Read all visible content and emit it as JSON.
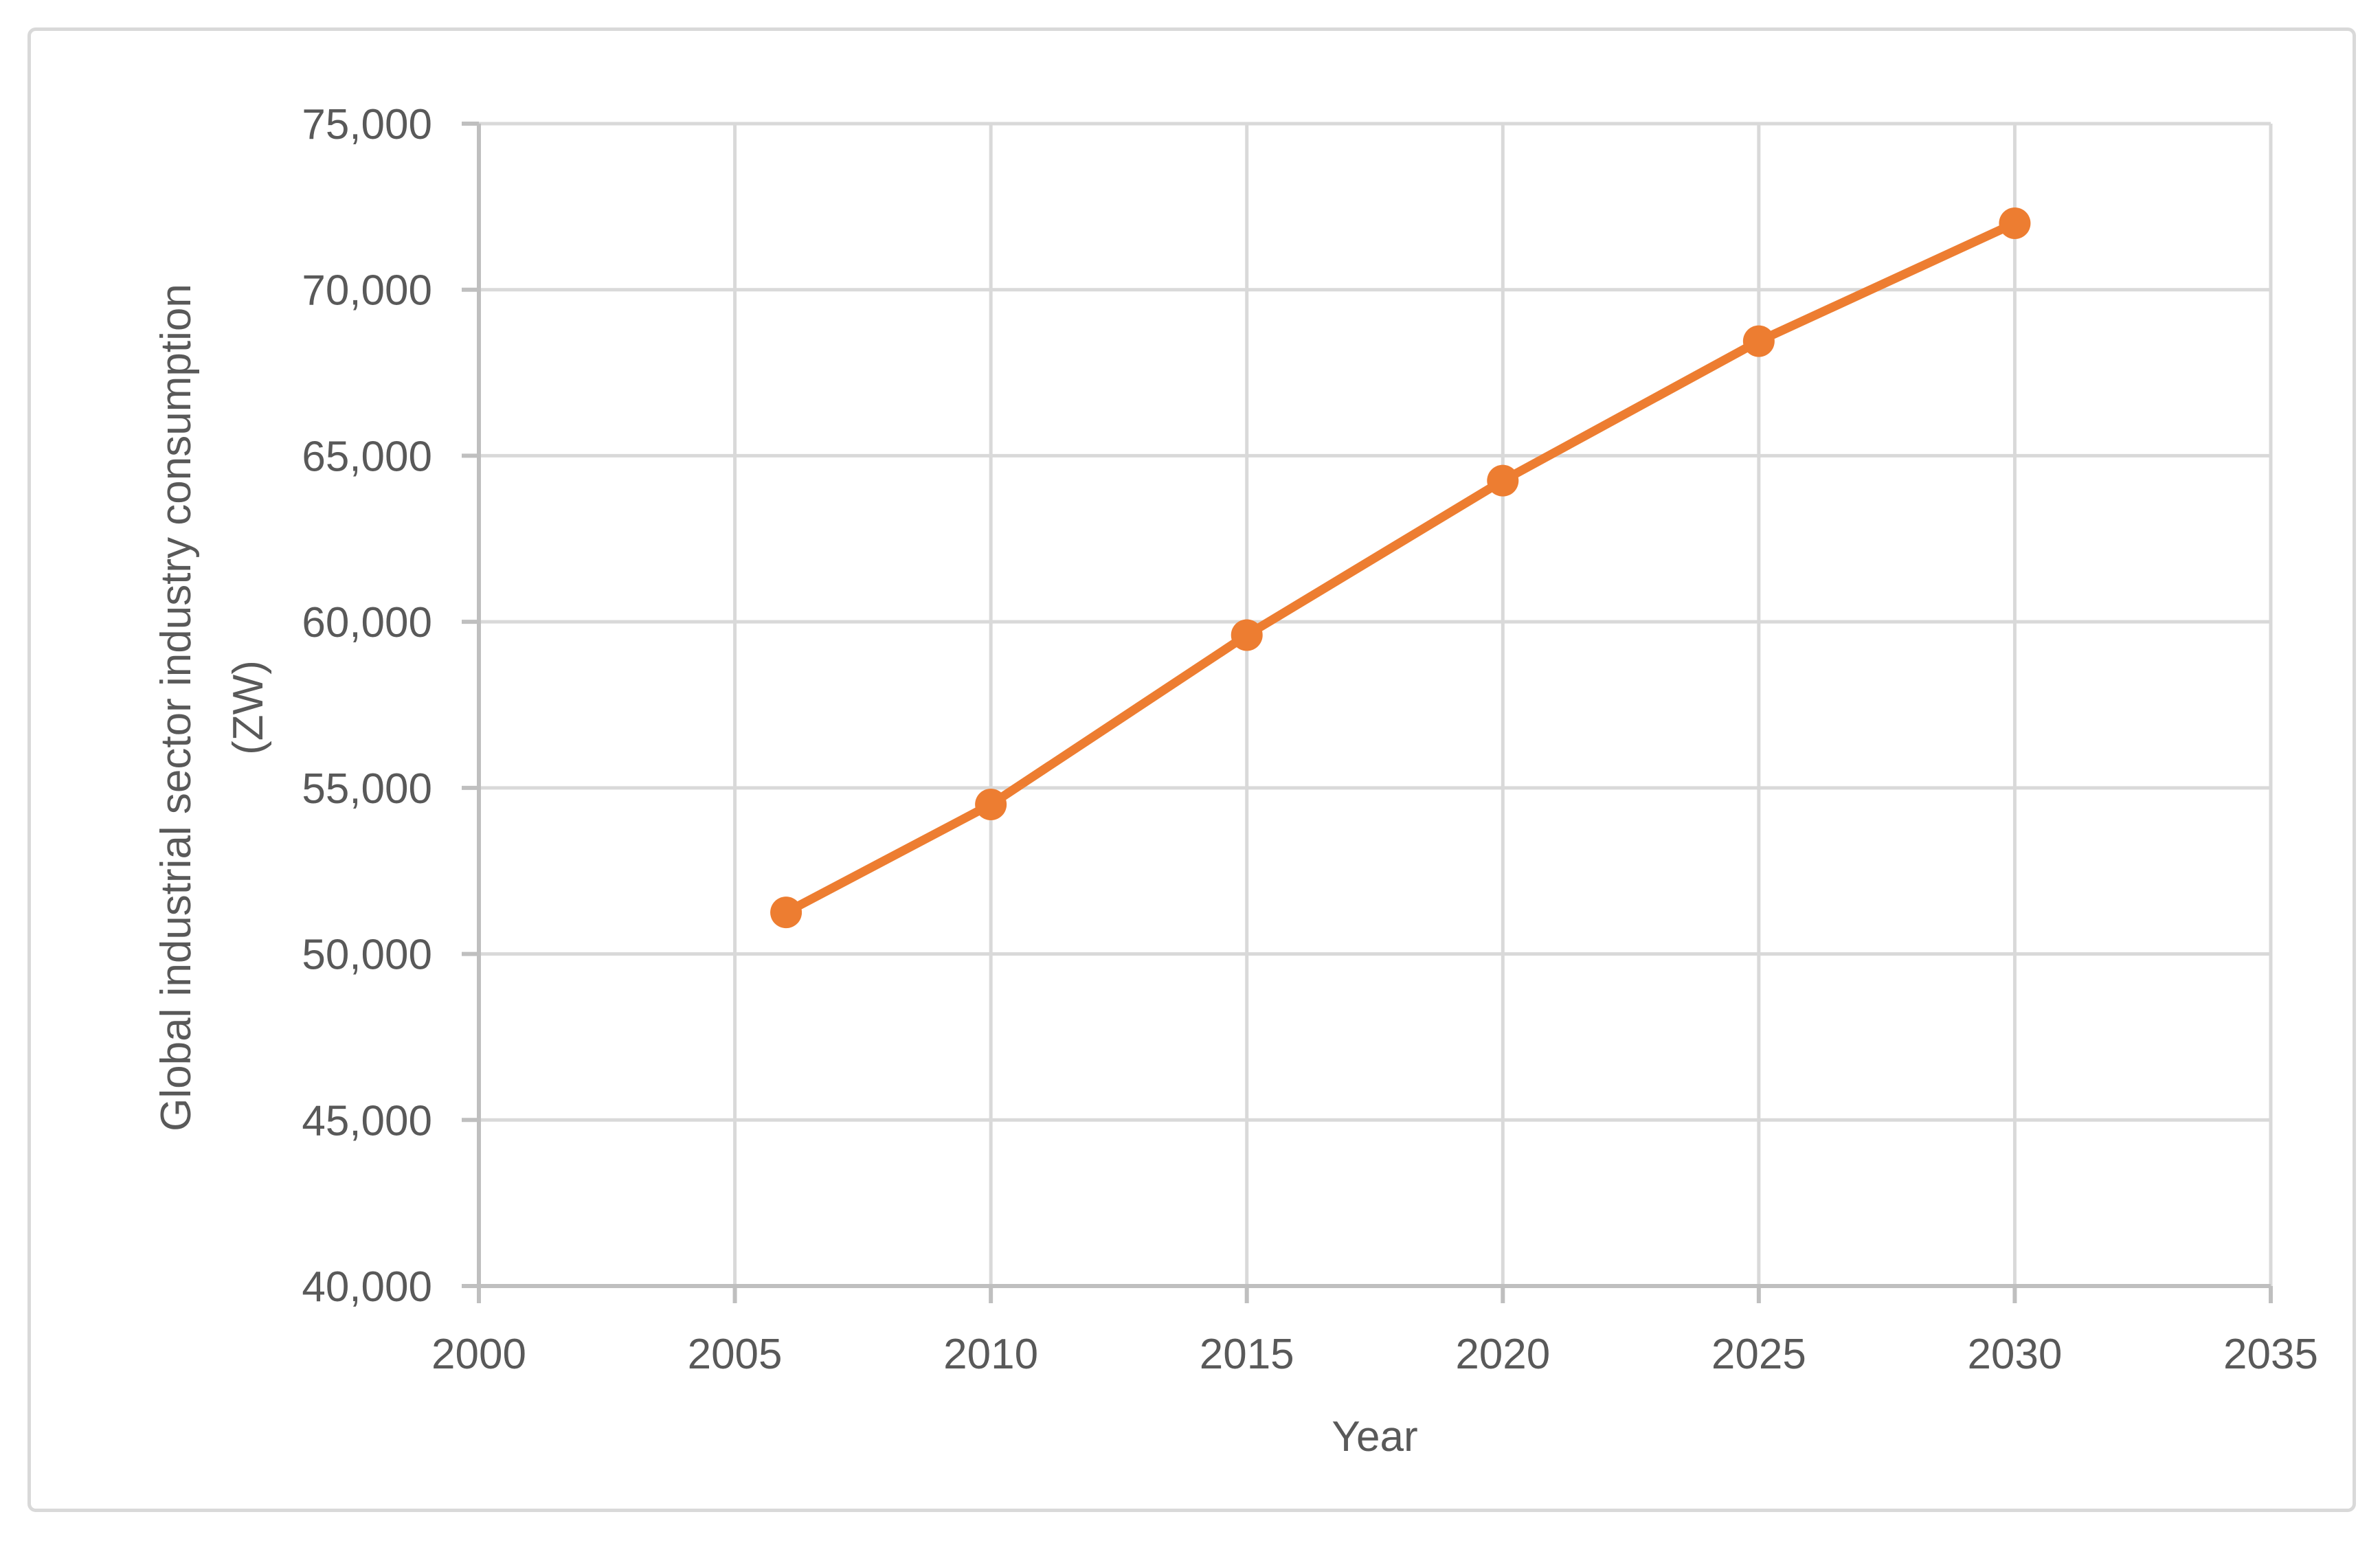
{
  "window": {
    "background": "#ffffff",
    "border_color": "#D9D9D9"
  },
  "chart_data": {
    "type": "line",
    "title": "",
    "xlabel": "Year",
    "ylabel": "Global industrial sector industry consumption (ZW)",
    "ylabel_line1": "Global industrial sector industry consumption",
    "ylabel_line2": "(ZW)",
    "x": [
      2006,
      2010,
      2015,
      2020,
      2025,
      2030
    ],
    "series": [
      {
        "name": "Global industrial sector industry consumption (ZW)",
        "values": [
          51250,
          54500,
          59600,
          64250,
          68450,
          72000
        ],
        "color": "#ED7D31",
        "marker": "circle",
        "line_style": "solid"
      }
    ],
    "xlim": [
      2000,
      2035
    ],
    "ylim": [
      40000,
      75000
    ],
    "x_ticks": [
      2000,
      2005,
      2010,
      2015,
      2020,
      2025,
      2030,
      2035
    ],
    "x_tick_labels": [
      "2000",
      "2005",
      "2010",
      "2015",
      "2020",
      "2025",
      "2030",
      "2035"
    ],
    "y_ticks": [
      40000,
      45000,
      50000,
      55000,
      60000,
      65000,
      70000,
      75000
    ],
    "y_tick_labels": [
      "40,000",
      "45,000",
      "50,000",
      "55,000",
      "60,000",
      "65,000",
      "70,000",
      "75,000"
    ],
    "grid": true,
    "legend": "none",
    "colors": {
      "gridline": "#D9D9D9",
      "axis_line": "#BFBFBF",
      "tick_mark": "#BFBFBF",
      "text": "#595959",
      "series": "#ED7D31"
    }
  }
}
